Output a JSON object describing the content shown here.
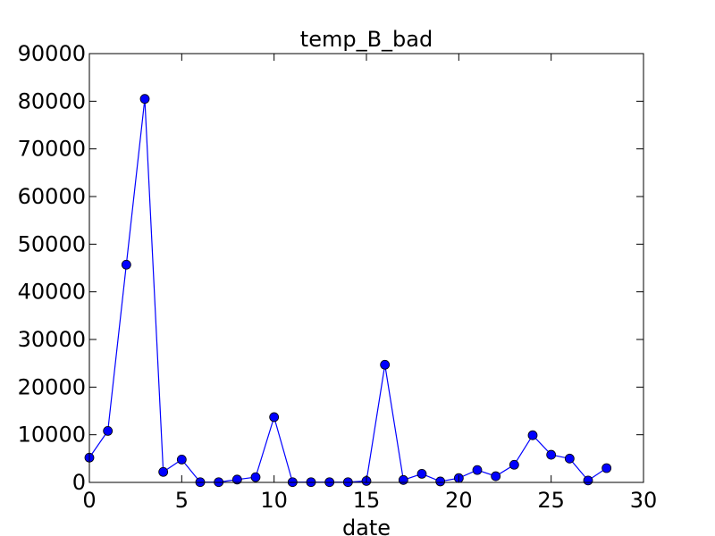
{
  "chart_data": {
    "type": "line",
    "title": "temp_B_bad",
    "xlabel": "date",
    "ylabel": "",
    "xlim": [
      0,
      30
    ],
    "ylim": [
      0,
      90000
    ],
    "xticks": [
      "0",
      "5",
      "10",
      "15",
      "20",
      "25",
      "30"
    ],
    "yticks": [
      "0",
      "10000",
      "20000",
      "30000",
      "40000",
      "50000",
      "60000",
      "70000",
      "80000",
      "90000"
    ],
    "grid": false,
    "legend": "none",
    "series": [
      {
        "color": "#0000ff",
        "marker": "circle",
        "x": [
          0,
          1,
          2,
          3,
          4,
          5,
          6,
          7,
          8,
          9,
          10,
          11,
          12,
          13,
          14,
          15,
          16,
          17,
          18,
          19,
          20,
          21,
          22,
          23,
          24,
          25,
          26,
          27,
          28
        ],
        "y": [
          5200,
          10800,
          45700,
          80500,
          2200,
          4800,
          50,
          50,
          600,
          1100,
          13700,
          50,
          50,
          50,
          50,
          300,
          24700,
          500,
          1800,
          200,
          900,
          2600,
          1300,
          3700,
          9900,
          5800,
          5000,
          400,
          3000
        ]
      }
    ]
  }
}
